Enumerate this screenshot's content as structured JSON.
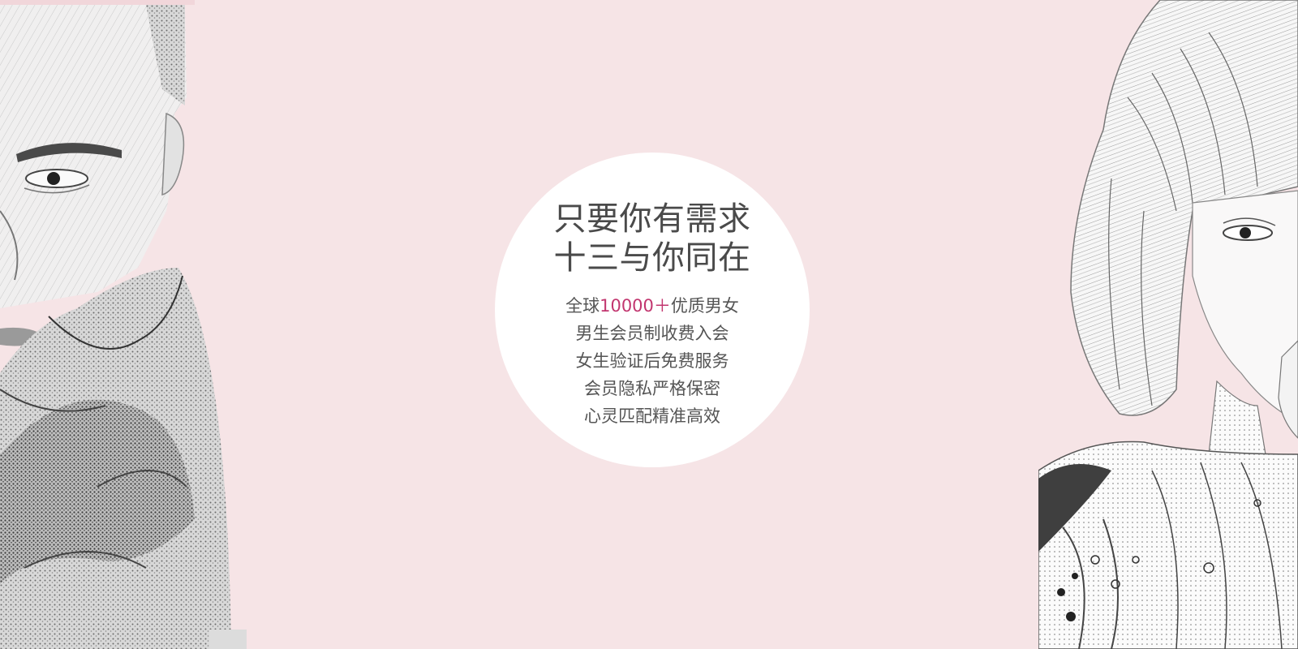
{
  "banner": {
    "headline": [
      "只要你有需求",
      "十三与你同在"
    ],
    "stat": {
      "prefix": "全球",
      "number": "10000",
      "plus": "＋",
      "suffix": "优质男女"
    },
    "features": [
      "男生会员制收费入会",
      "女生验证后免费服务",
      "会员隐私严格保密",
      "心灵匹配精准高效"
    ]
  },
  "colors": {
    "background": "#f6e4e6",
    "circle": "#ffffff",
    "text": "#4a4a4a",
    "accent": "#c2366f"
  },
  "illustrations": {
    "left": "sketch-portrait-man",
    "right": "sketch-portrait-woman"
  }
}
